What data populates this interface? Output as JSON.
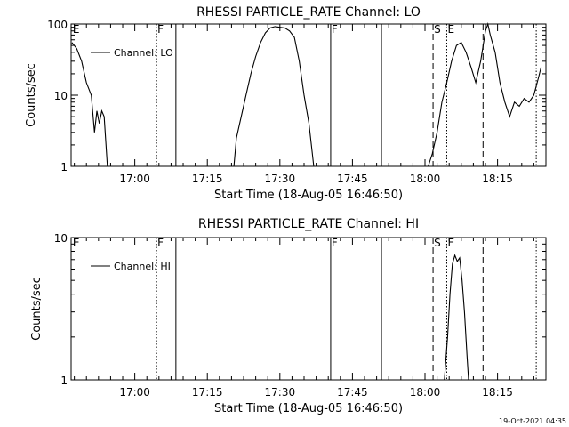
{
  "footer": {
    "timestamp": "19-Oct-2021 04:35"
  },
  "chart_data": [
    {
      "type": "line",
      "title": "RHESSI PARTICLE_RATE Channel: LO",
      "xlabel": "Start Time (18-Aug-05 16:46:50)",
      "ylabel": "Counts/sec",
      "y_scale": "log",
      "ylim": [
        1,
        100
      ],
      "xlim": [
        "16:46:50",
        "18:25:00"
      ],
      "y_ticks": [
        "1",
        "10",
        "100"
      ],
      "x_ticks": [
        "17:00",
        "17:15",
        "17:30",
        "17:45",
        "18:00",
        "18:15"
      ],
      "legend": {
        "position": "top-left",
        "label": "Channel: LO"
      },
      "series": [
        {
          "name": "Channel: LO",
          "points": [
            [
              "16:47:00",
              55
            ],
            [
              "16:48:00",
              45
            ],
            [
              "16:49:00",
              30
            ],
            [
              "16:50:00",
              15
            ],
            [
              "16:51:00",
              10
            ],
            [
              "16:51:40",
              3
            ],
            [
              "16:52:10",
              6
            ],
            [
              "16:52:40",
              4
            ],
            [
              "16:53:10",
              6
            ],
            [
              "16:53:40",
              5
            ],
            [
              "16:54:20",
              1
            ],
            null,
            [
              "17:20:30",
              1
            ],
            [
              "17:21:00",
              2.5
            ],
            [
              "17:22:00",
              5
            ],
            [
              "17:23:00",
              10
            ],
            [
              "17:24:00",
              20
            ],
            [
              "17:25:00",
              35
            ],
            [
              "17:26:00",
              55
            ],
            [
              "17:27:00",
              75
            ],
            [
              "17:28:00",
              88
            ],
            [
              "17:29:00",
              92
            ],
            [
              "17:30:00",
              90
            ],
            [
              "17:31:00",
              88
            ],
            [
              "17:32:00",
              80
            ],
            [
              "17:33:00",
              65
            ],
            [
              "17:34:00",
              30
            ],
            [
              "17:35:00",
              10
            ],
            [
              "17:36:00",
              4
            ],
            [
              "17:37:00",
              1
            ],
            null,
            [
              "18:00:40",
              1
            ],
            [
              "18:01:30",
              1.5
            ],
            [
              "18:02:30",
              3
            ],
            [
              "18:03:30",
              8
            ],
            [
              "18:04:30",
              15
            ],
            [
              "18:05:30",
              30
            ],
            [
              "18:06:30",
              50
            ],
            [
              "18:07:30",
              55
            ],
            [
              "18:08:30",
              40
            ],
            [
              "18:09:30",
              25
            ],
            [
              "18:10:30",
              15
            ],
            [
              "18:11:30",
              30
            ],
            [
              "18:12:30",
              80
            ],
            [
              "18:13:00",
              100
            ],
            [
              "18:13:30",
              70
            ],
            [
              "18:14:30",
              40
            ],
            [
              "18:15:30",
              15
            ],
            [
              "18:16:30",
              8
            ],
            [
              "18:17:30",
              5
            ],
            [
              "18:18:30",
              8
            ],
            [
              "18:19:30",
              7
            ],
            [
              "18:20:30",
              9
            ],
            [
              "18:21:30",
              8
            ],
            [
              "18:22:30",
              10
            ],
            [
              "18:23:30",
              18
            ],
            [
              "18:24:00",
              25
            ]
          ]
        }
      ],
      "annotations": [
        {
          "time": "16:47:00",
          "label": "E",
          "style": "none"
        },
        {
          "time": "17:04:30",
          "label": "F",
          "style": "dotted"
        },
        {
          "time": "17:08:30",
          "label": "",
          "style": "solid"
        },
        {
          "time": "17:40:30",
          "label": "F",
          "style": "solid"
        },
        {
          "time": "17:51:00",
          "label": "",
          "style": "solid"
        },
        {
          "time": "18:01:40",
          "label": "S",
          "style": "dashed"
        },
        {
          "time": "18:04:30",
          "label": "E",
          "style": "dotted"
        },
        {
          "time": "18:12:00",
          "label": "",
          "style": "dashed"
        },
        {
          "time": "18:23:00",
          "label": "",
          "style": "dotted"
        }
      ]
    },
    {
      "type": "line",
      "title": "RHESSI PARTICLE_RATE Channel: HI",
      "xlabel": "Start Time (18-Aug-05 16:46:50)",
      "ylabel": "Counts/sec",
      "y_scale": "log",
      "ylim": [
        1,
        10
      ],
      "xlim": [
        "16:46:50",
        "18:25:00"
      ],
      "y_ticks": [
        "1",
        "10"
      ],
      "x_ticks": [
        "17:00",
        "17:15",
        "17:30",
        "17:45",
        "18:00",
        "18:15"
      ],
      "legend": {
        "position": "top-left",
        "label": "Channel: HI"
      },
      "series": [
        {
          "name": "Channel: HI",
          "points": [
            [
              "18:04:00",
              1
            ],
            [
              "18:04:40",
              2
            ],
            [
              "18:05:10",
              4
            ],
            [
              "18:05:40",
              6.5
            ],
            [
              "18:06:10",
              7.5
            ],
            [
              "18:06:40",
              6.8
            ],
            [
              "18:07:10",
              7.2
            ],
            [
              "18:07:40",
              5
            ],
            [
              "18:08:10",
              3
            ],
            [
              "18:08:40",
              1.5
            ],
            [
              "18:09:00",
              1
            ]
          ]
        }
      ],
      "annotations": [
        {
          "time": "16:47:00",
          "label": "E",
          "style": "none"
        },
        {
          "time": "17:04:30",
          "label": "F",
          "style": "dotted"
        },
        {
          "time": "17:08:30",
          "label": "",
          "style": "solid"
        },
        {
          "time": "17:40:30",
          "label": "F",
          "style": "solid"
        },
        {
          "time": "17:51:00",
          "label": "",
          "style": "solid"
        },
        {
          "time": "18:01:40",
          "label": "S",
          "style": "dashed"
        },
        {
          "time": "18:04:30",
          "label": "E",
          "style": "dotted"
        },
        {
          "time": "18:12:00",
          "label": "",
          "style": "dashed"
        },
        {
          "time": "18:23:00",
          "label": "",
          "style": "dotted"
        }
      ]
    }
  ]
}
